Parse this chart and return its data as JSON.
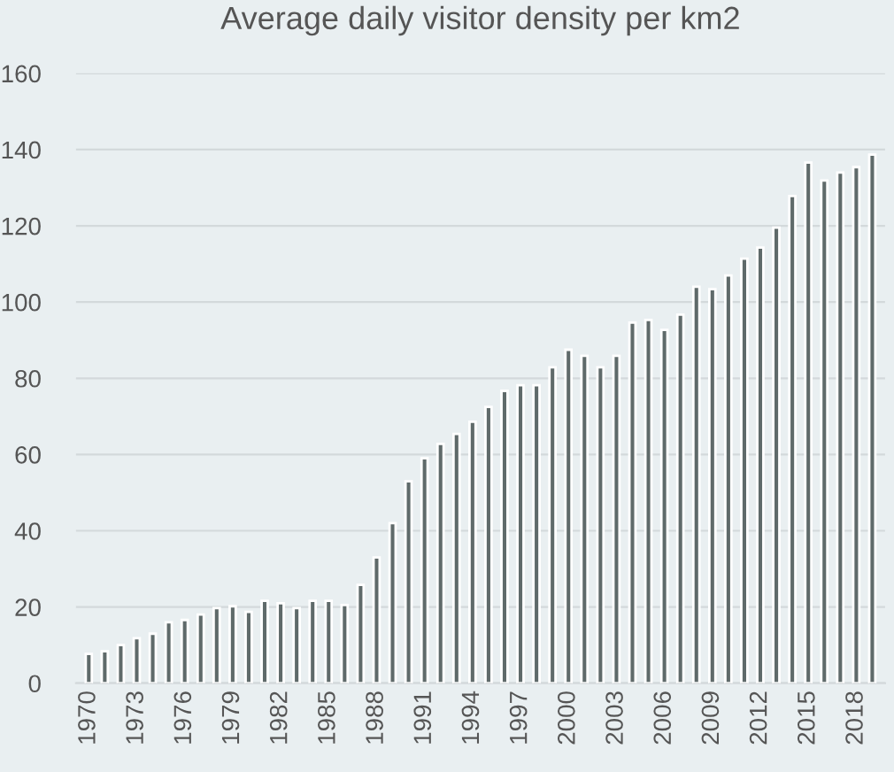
{
  "chart_data": {
    "type": "bar",
    "title": "Average daily visitor density per km2",
    "categories": [
      "1970",
      null,
      null,
      "1973",
      null,
      null,
      "1976",
      null,
      null,
      "1979",
      null,
      null,
      "1982",
      null,
      null,
      "1985",
      null,
      null,
      "1988",
      null,
      null,
      "1991",
      null,
      null,
      "1994",
      null,
      null,
      "1997",
      null,
      null,
      "2000",
      null,
      null,
      "2003",
      null,
      null,
      "2006",
      null,
      null,
      "2009",
      null,
      null,
      "2012",
      null,
      null,
      "2015",
      null,
      null,
      "2018",
      null
    ],
    "values": [
      7.7,
      8.4,
      10,
      11.8,
      13,
      16,
      16.6,
      18,
      19.7,
      20.2,
      18.7,
      21.6,
      21,
      19.7,
      21.6,
      21.6,
      20.5,
      25.8,
      33,
      42,
      53,
      59,
      62.8,
      65.4,
      68.6,
      72.5,
      76.7,
      78.2,
      78.2,
      82.9,
      87.5,
      85.9,
      82.9,
      85.9,
      94.6,
      95.3,
      92.7,
      96.7,
      104,
      103.4,
      107,
      111.4,
      114.3,
      119.5,
      127.8,
      136.6,
      131.9,
      134,
      135.4,
      138.7
    ],
    "color": "#5f6a6a",
    "ylim": [
      0,
      160
    ],
    "yticks": [
      0,
      20,
      40,
      60,
      80,
      100,
      120,
      140,
      160
    ],
    "grid": "y"
  }
}
